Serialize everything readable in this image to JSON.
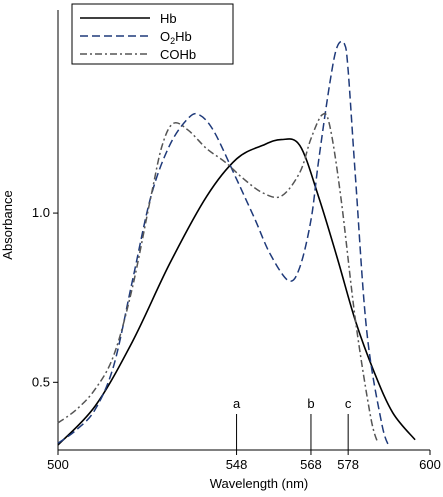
{
  "colors": {
    "hb": "#000000",
    "o2hb": "#1f3a7a",
    "cohb": "#555555"
  },
  "chart_data": {
    "type": "line",
    "xlabel": "Wavelength (nm)",
    "ylabel": "Absorbance",
    "xlim": [
      500,
      600
    ],
    "ylim": [
      0.3,
      1.6
    ],
    "x_ticks": [
      500,
      548,
      568,
      578,
      600
    ],
    "y_ticks": [
      0.5,
      1.0
    ],
    "legend": {
      "position": "top-left",
      "entries": [
        {
          "key": "hb",
          "label": "Hb",
          "sub": "",
          "rest": "",
          "style": "solid"
        },
        {
          "key": "o2hb",
          "label": "O",
          "sub": "2",
          "rest": "Hb",
          "style": "dashed"
        },
        {
          "key": "cohb",
          "label": "COHb",
          "sub": "",
          "rest": "",
          "style": "dashdot"
        }
      ]
    },
    "markers": [
      {
        "label": "a",
        "x": 548
      },
      {
        "label": "b",
        "x": 568
      },
      {
        "label": "c",
        "x": 578
      }
    ],
    "series": [
      {
        "name": "Hb",
        "key": "hb",
        "style": "solid",
        "points": [
          [
            500,
            0.315
          ],
          [
            510,
            0.43
          ],
          [
            520,
            0.62
          ],
          [
            530,
            0.85
          ],
          [
            540,
            1.05
          ],
          [
            548,
            1.16
          ],
          [
            555,
            1.2
          ],
          [
            560,
            1.217
          ],
          [
            565,
            1.2
          ],
          [
            570,
            1.05
          ],
          [
            575,
            0.87
          ],
          [
            580,
            0.68
          ],
          [
            585,
            0.53
          ],
          [
            590,
            0.41
          ],
          [
            596,
            0.33
          ]
        ]
      },
      {
        "name": "O2Hb",
        "key": "o2hb",
        "style": "dashed",
        "points": [
          [
            500,
            0.32
          ],
          [
            505,
            0.36
          ],
          [
            510,
            0.42
          ],
          [
            515,
            0.55
          ],
          [
            520,
            0.8
          ],
          [
            525,
            1.05
          ],
          [
            530,
            1.2
          ],
          [
            535,
            1.28
          ],
          [
            538,
            1.29
          ],
          [
            542,
            1.24
          ],
          [
            548,
            1.1
          ],
          [
            553,
            0.98
          ],
          [
            557,
            0.88
          ],
          [
            562,
            0.8
          ],
          [
            565,
            0.84
          ],
          [
            568,
            0.98
          ],
          [
            570,
            1.15
          ],
          [
            573,
            1.38
          ],
          [
            575,
            1.49
          ],
          [
            577,
            1.5
          ],
          [
            578,
            1.42
          ],
          [
            580,
            1.1
          ],
          [
            583,
            0.65
          ],
          [
            587,
            0.38
          ],
          [
            589,
            0.31
          ]
        ]
      },
      {
        "name": "COHb",
        "key": "cohb",
        "style": "dashdot",
        "points": [
          [
            500,
            0.38
          ],
          [
            505,
            0.42
          ],
          [
            510,
            0.48
          ],
          [
            515,
            0.58
          ],
          [
            520,
            0.78
          ],
          [
            525,
            1.05
          ],
          [
            528,
            1.2
          ],
          [
            531,
            1.265
          ],
          [
            535,
            1.245
          ],
          [
            540,
            1.19
          ],
          [
            545,
            1.15
          ],
          [
            550,
            1.1
          ],
          [
            555,
            1.06
          ],
          [
            560,
            1.05
          ],
          [
            565,
            1.12
          ],
          [
            568,
            1.22
          ],
          [
            571,
            1.29
          ],
          [
            573,
            1.26
          ],
          [
            576,
            1.05
          ],
          [
            580,
            0.68
          ],
          [
            584,
            0.4
          ],
          [
            586,
            0.32
          ]
        ]
      }
    ]
  }
}
